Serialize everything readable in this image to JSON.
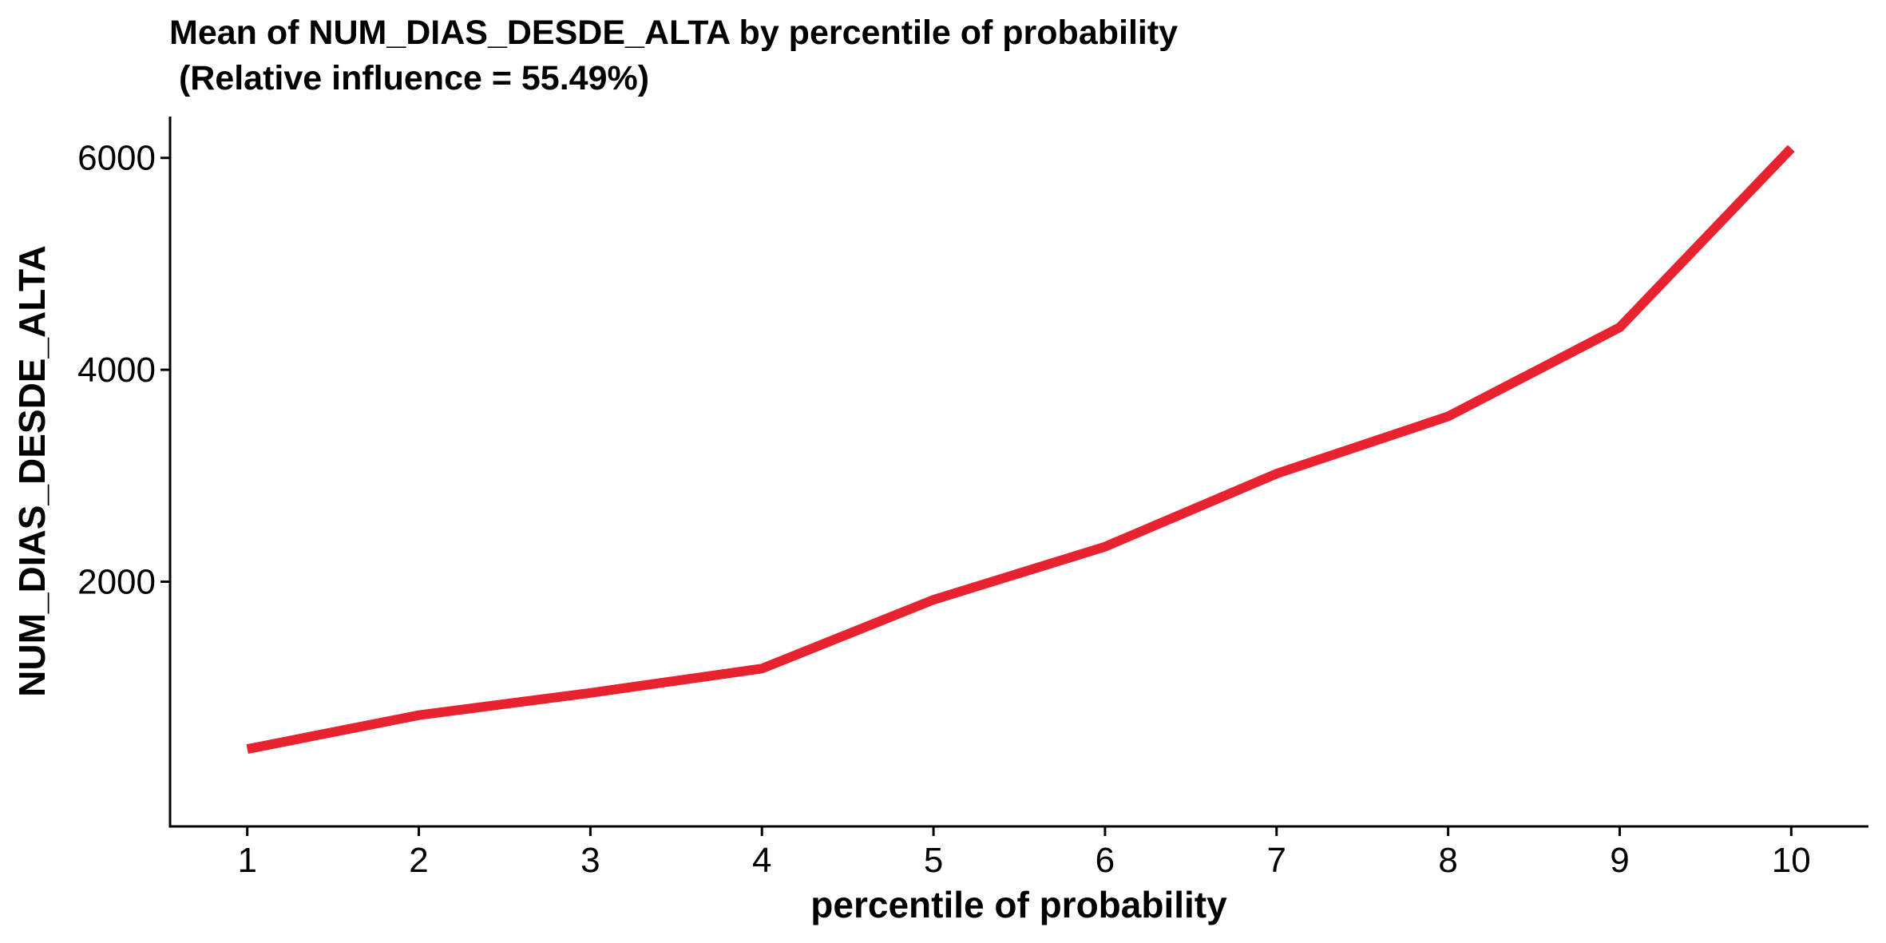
{
  "chart_data": {
    "type": "line",
    "title_line1": "Mean of NUM_DIAS_DESDE_ALTA by percentile of probability",
    "title_line2": " (Relative influence = 55.49%)",
    "xlabel": "percentile of probability",
    "ylabel": "NUM_DIAS_DESDE_ALTA",
    "x": [
      1,
      2,
      3,
      4,
      5,
      6,
      7,
      8,
      9,
      10
    ],
    "y": [
      420,
      740,
      950,
      1180,
      1830,
      2330,
      3020,
      3560,
      4400,
      6090
    ],
    "xlim": [
      0.55,
      10.45
    ],
    "ylim": [
      -310,
      6390
    ],
    "x_ticks": [
      1,
      2,
      3,
      4,
      5,
      6,
      7,
      8,
      9,
      10
    ],
    "y_ticks": [
      2000,
      4000,
      6000
    ],
    "line_color": "#e8222f",
    "grid": false,
    "legend": "none"
  }
}
